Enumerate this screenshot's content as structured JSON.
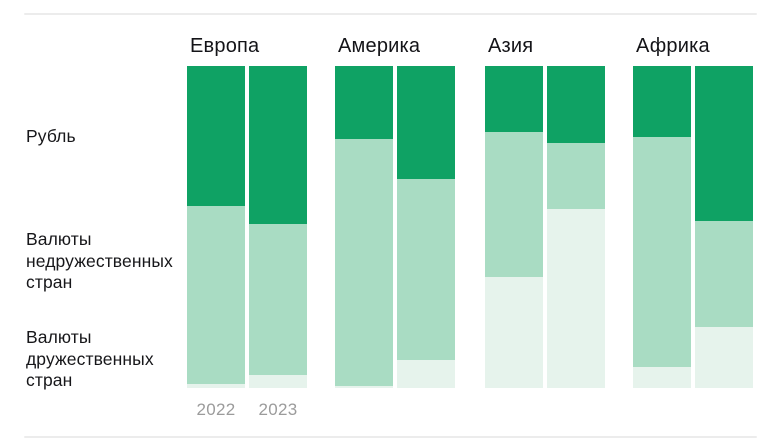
{
  "colors": {
    "ruble_green": "#0fa264",
    "unfriendly_light_green": "#a9dcc3",
    "friendly_pale_green": "#e6f3ec",
    "dark_text": "#1e1f24",
    "gray_text": "#8f9092",
    "divider": "#ececec"
  },
  "chart_data": {
    "type": "bar",
    "stacked": true,
    "unit": "percent",
    "ylim": [
      0,
      100
    ],
    "legend_position": "left-axis-labels",
    "grid": false,
    "series": [
      {
        "name": "Рубль",
        "color": "#0fa264"
      },
      {
        "name": "Валюты недружественных стран",
        "color": "#a9dcc3"
      },
      {
        "name": "Валюты дружественных стран",
        "color": "#e6f3ec"
      }
    ],
    "year_labels": [
      "2022",
      "2023"
    ],
    "groups": [
      {
        "title": "Европа",
        "bars": [
          {
            "year": "2022",
            "segments": [
              {
                "label": "43,6",
                "value": 43.6
              },
              {
                "label": "55,1",
                "value": 55.1
              },
              {
                "label": "1,3",
                "value": 1.3
              }
            ]
          },
          {
            "year": "2023",
            "segments": [
              {
                "label": "49",
                "value": 49
              },
              {
                "label": "47,1",
                "value": 47.1
              },
              {
                "label": "3,9",
                "value": 3.9
              }
            ]
          }
        ]
      },
      {
        "title": "Америка",
        "bars": [
          {
            "year": "2022",
            "segments": [
              {
                "label": "22,7",
                "value": 22.7
              },
              {
                "label": "76,7",
                "value": 76.7
              },
              {
                "label": "0,6",
                "value": 0.6
              }
            ]
          },
          {
            "year": "2023",
            "segments": [
              {
                "label": "35,1",
                "value": 35.1
              },
              {
                "label": "56,1",
                "value": 56.1
              },
              {
                "label": "8,8",
                "value": 8.8
              }
            ]
          }
        ]
      },
      {
        "title": "Азия",
        "bars": [
          {
            "year": "2022",
            "segments": [
              {
                "label": "20,5",
                "value": 20.5
              },
              {
                "label": "45,1",
                "value": 45.1
              },
              {
                "label": "34,4",
                "value": 34.4
              }
            ]
          },
          {
            "year": "2023",
            "segments": [
              {
                "label": "24",
                "value": 24
              },
              {
                "label": "20,5",
                "value": 20.5
              },
              {
                "label": "55,5",
                "value": 55.5
              }
            ]
          }
        ]
      },
      {
        "title": "Африка",
        "bars": [
          {
            "year": "2022",
            "segments": [
              {
                "label": "21,9",
                "value": 21.9
              },
              {
                "label": "71,7",
                "value": 71.7
              },
              {
                "label": "6,5",
                "value": 6.5
              }
            ]
          },
          {
            "year": "2023",
            "segments": [
              {
                "label": "48,1",
                "value": 48.1
              },
              {
                "label": "33,1",
                "value": 33.1
              },
              {
                "label": "18,8",
                "value": 18.8
              }
            ]
          }
        ]
      }
    ]
  }
}
